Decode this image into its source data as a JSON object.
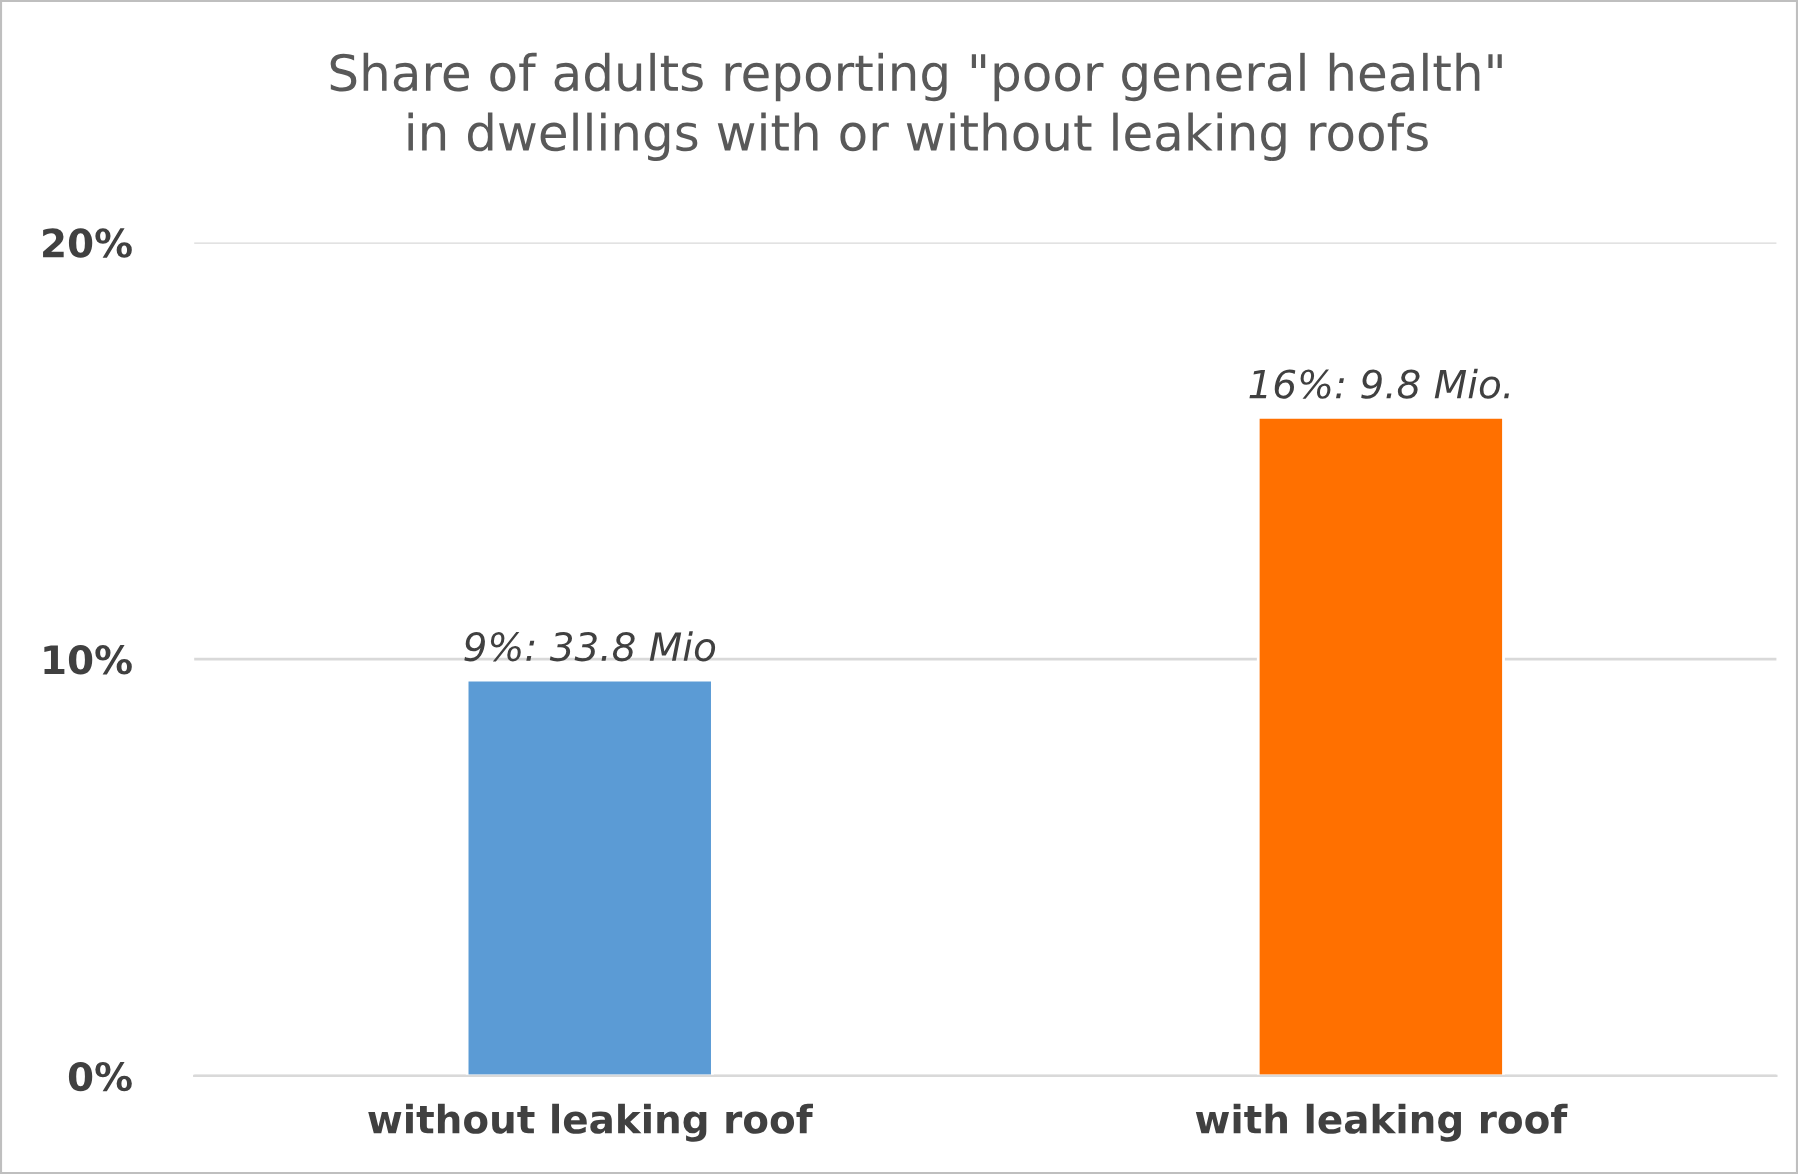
{
  "chart_data": {
    "type": "bar",
    "title": "Share of adults reporting \"poor general health\"\nin dwellings with or without leaking roofs",
    "categories": [
      "without leaking roof",
      "with leaking roof"
    ],
    "values": [
      9.5,
      15.8
    ],
    "colors": [
      "#5b9bd5",
      "#ff7000"
    ],
    "value_labels": [
      "9%: 33.8 Mio",
      "16%: 9.8 Mio."
    ],
    "ylim": [
      0,
      20
    ],
    "yticks": [
      {
        "value": 0,
        "label": "0%"
      },
      {
        "value": 10,
        "label": "10%"
      },
      {
        "value": 20,
        "label": "20%"
      }
    ],
    "grid": "y"
  }
}
